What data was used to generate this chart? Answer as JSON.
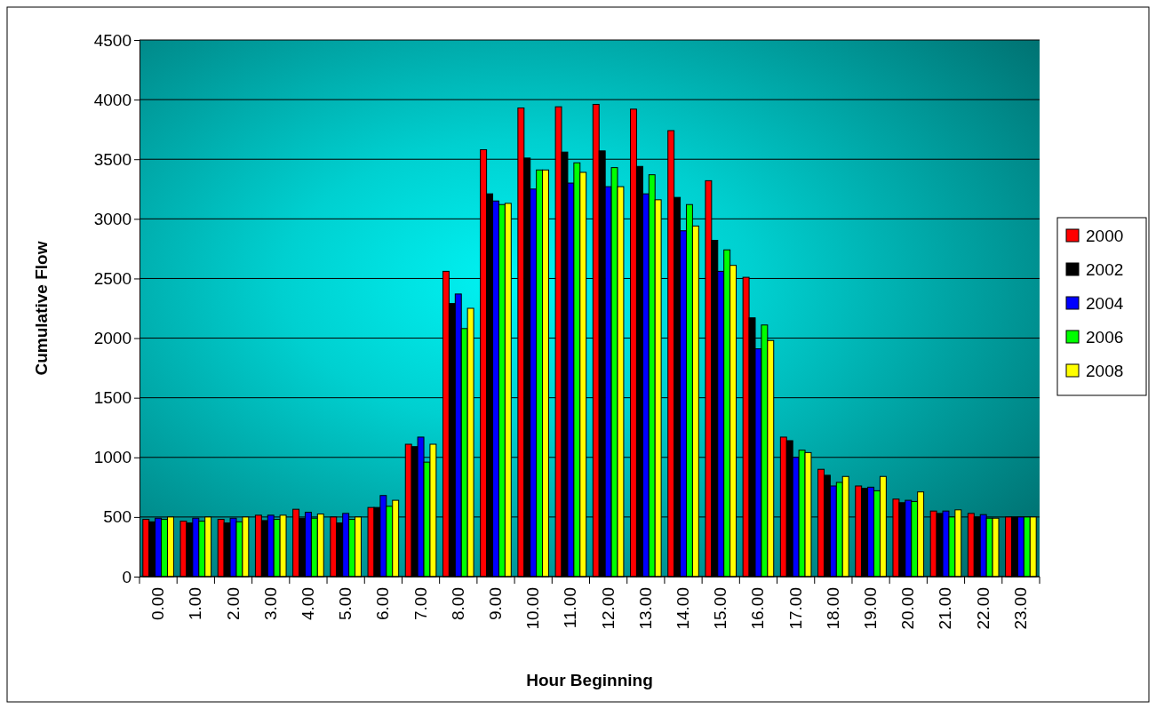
{
  "chart_data": {
    "type": "bar",
    "xlabel": "Hour Beginning",
    "ylabel": "Cumulative Flow",
    "categories": [
      "0.00",
      "1.00",
      "2.00",
      "3.00",
      "4.00",
      "5.00",
      "6.00",
      "7.00",
      "8.00",
      "9.00",
      "10.00",
      "11.00",
      "12.00",
      "13.00",
      "14.00",
      "15.00",
      "16.00",
      "17.00",
      "18.00",
      "19.00",
      "20.00",
      "21.00",
      "22.00",
      "23.00"
    ],
    "series": [
      {
        "name": "2000",
        "color": "#ff0000",
        "values": [
          480,
          465,
          480,
          515,
          565,
          500,
          580,
          1110,
          2560,
          3580,
          3930,
          3940,
          3960,
          3920,
          3740,
          3320,
          2510,
          1170,
          900,
          760,
          650,
          550,
          530,
          500
        ]
      },
      {
        "name": "2002",
        "color": "#000000",
        "values": [
          460,
          450,
          450,
          470,
          490,
          450,
          580,
          1090,
          2290,
          3210,
          3510,
          3560,
          3570,
          3440,
          3180,
          2820,
          2170,
          1140,
          850,
          740,
          620,
          530,
          500,
          500
        ]
      },
      {
        "name": "2004",
        "color": "#0000ff",
        "values": [
          490,
          490,
          490,
          515,
          540,
          530,
          680,
          1170,
          2370,
          3150,
          3250,
          3300,
          3270,
          3210,
          2900,
          2560,
          1910,
          1000,
          760,
          750,
          640,
          550,
          520,
          500
        ]
      },
      {
        "name": "2006",
        "color": "#00ff00",
        "values": [
          480,
          465,
          460,
          480,
          490,
          480,
          590,
          960,
          2080,
          3120,
          3410,
          3470,
          3430,
          3370,
          3120,
          2740,
          2110,
          1060,
          790,
          720,
          630,
          500,
          490,
          500
        ]
      },
      {
        "name": "2008",
        "color": "#ffff00",
        "values": [
          500,
          500,
          500,
          515,
          525,
          500,
          640,
          1110,
          2250,
          3130,
          3410,
          3390,
          3270,
          3160,
          2940,
          2610,
          1980,
          1040,
          840,
          840,
          710,
          560,
          490,
          500
        ]
      }
    ],
    "ylim": [
      0,
      4500
    ],
    "yticks": [
      0,
      500,
      1000,
      1500,
      2000,
      2500,
      3000,
      3500,
      4000,
      4500
    ],
    "grid": "y",
    "legend": "right"
  }
}
